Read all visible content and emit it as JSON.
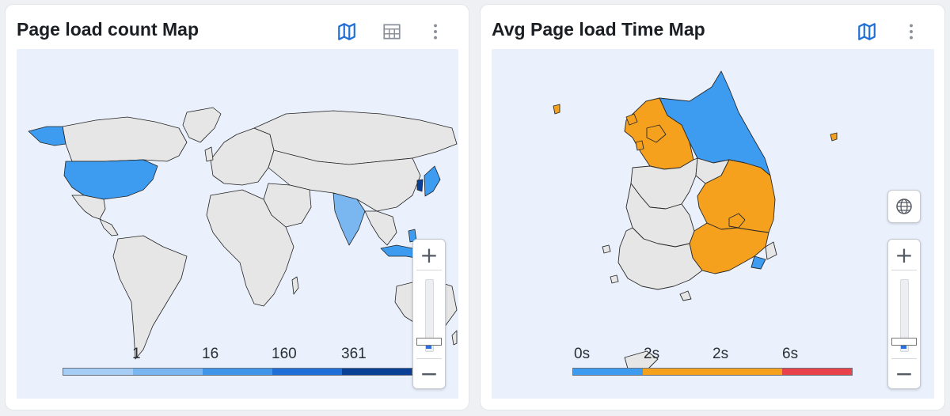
{
  "left_card": {
    "title": "Page load count Map",
    "icons": [
      "map-icon",
      "table-icon",
      "more-vertical-icon"
    ],
    "legend": {
      "labels": [
        "1",
        "16",
        "160",
        "361"
      ],
      "colors": [
        "#a8cdf5",
        "#7ab6f0",
        "#3f95e8",
        "#1f6fd6",
        "#0a3f96"
      ]
    },
    "zoom": {
      "plus": "+",
      "minus": "−",
      "level": 0.1
    }
  },
  "right_card": {
    "title": "Avg Page load Time Map",
    "icons": [
      "map-icon",
      "more-vertical-icon"
    ],
    "legend": {
      "labels": [
        "0s",
        "2s",
        "2s",
        "6s"
      ],
      "colors": [
        "#3d9cf0",
        "#f5a11e",
        "#f5a11e",
        "#e8424a"
      ]
    },
    "zoom": {
      "plus": "+",
      "minus": "−",
      "level": 0.1
    },
    "globe_icon": "globe-icon"
  },
  "colors": {
    "accent": "#1f6fd6",
    "land": "#e6e6e6",
    "ocean": "#eaf1fd",
    "blue_region": "#3d9cf0",
    "orange_region": "#f5a11e"
  }
}
